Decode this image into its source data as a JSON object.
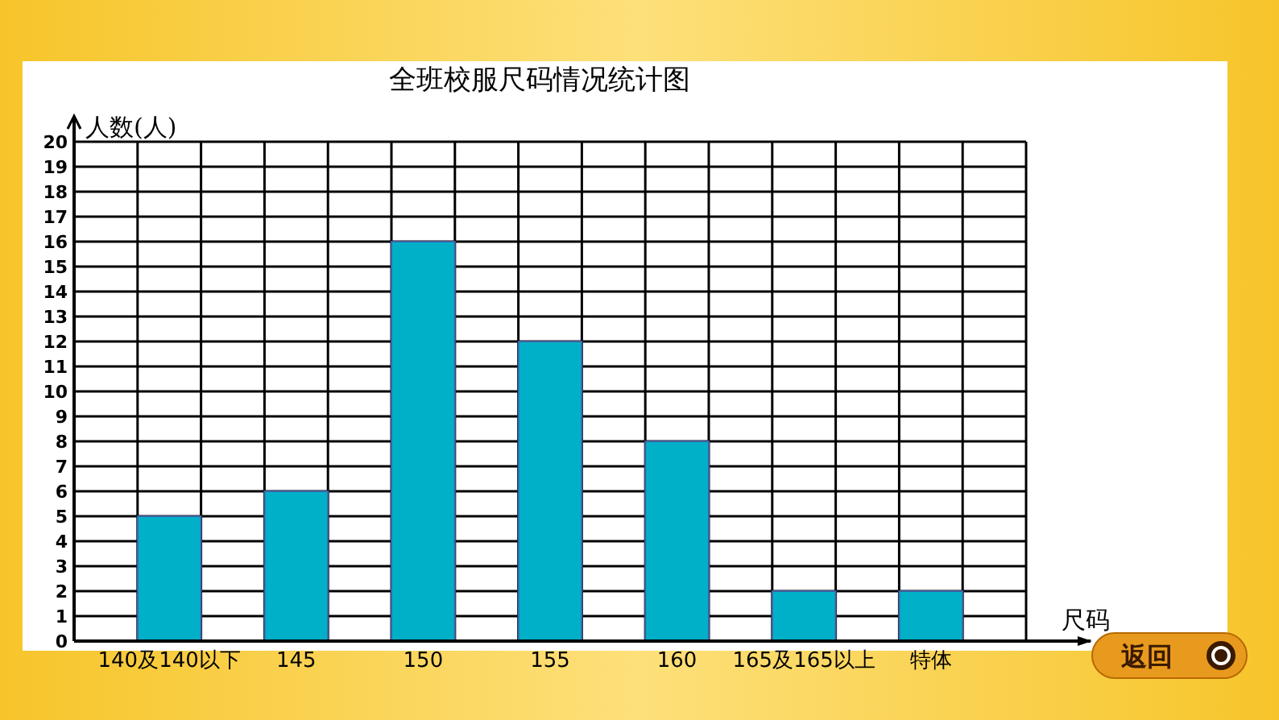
{
  "chart_data": {
    "type": "bar",
    "title": "全班校服尺码情况统计图",
    "xlabel": "尺码",
    "ylabel": "人数(人)",
    "categories": [
      "140及140以下",
      "145",
      "150",
      "155",
      "160",
      "165及165以上",
      "特体"
    ],
    "values": [
      5,
      6,
      16,
      12,
      8,
      2,
      2
    ],
    "color": "#00b0c8",
    "ylim": [
      0,
      20
    ],
    "yticks": [
      0,
      1,
      2,
      3,
      4,
      5,
      6,
      7,
      8,
      9,
      10,
      11,
      12,
      13,
      14,
      15,
      16,
      17,
      18,
      19,
      20
    ],
    "grid": true,
    "annotations": [
      "返回"
    ]
  }
}
